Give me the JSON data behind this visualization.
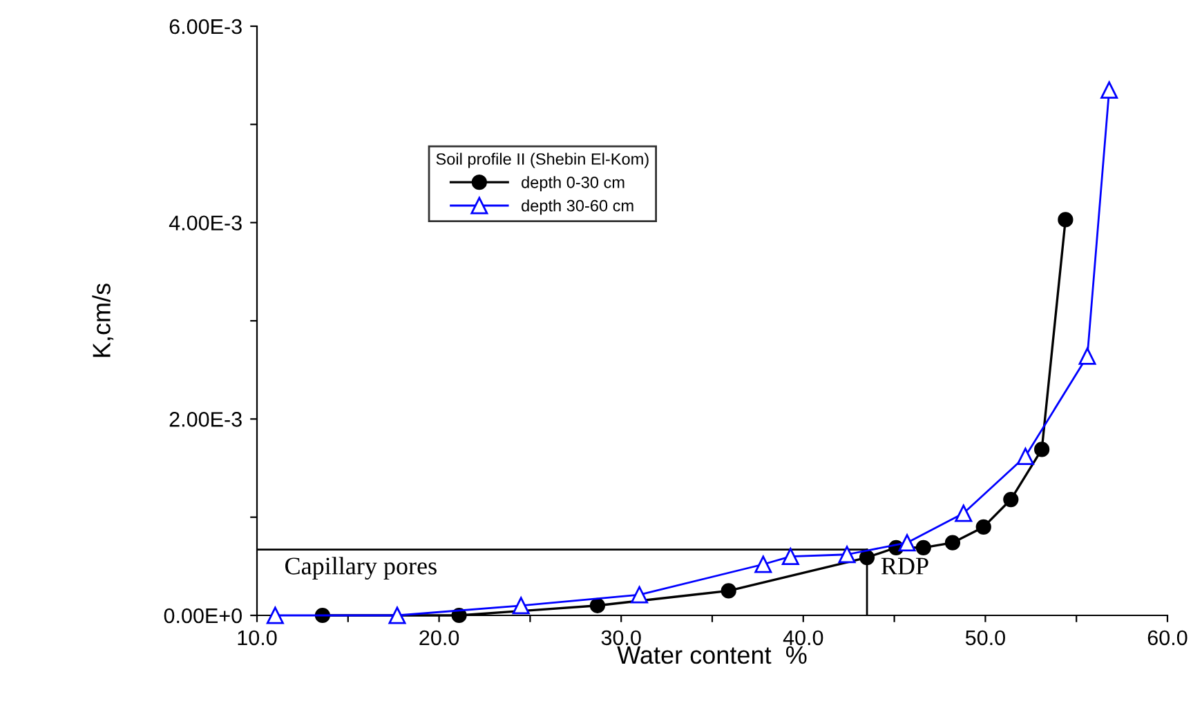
{
  "chart_data": {
    "type": "line",
    "xlabel": "Water content  %",
    "ylabel": "K,cm/s",
    "legend_title": "Soil profile II (Shebin El-Kom)",
    "xlim": [
      10,
      60
    ],
    "xticks": [
      {
        "value": 10,
        "label": "10.0"
      },
      {
        "value": 15,
        "label": null
      },
      {
        "value": 20,
        "label": "20.0"
      },
      {
        "value": 25,
        "label": null
      },
      {
        "value": 30,
        "label": "30.0"
      },
      {
        "value": 35,
        "label": null
      },
      {
        "value": 40,
        "label": "40.0"
      },
      {
        "value": 45,
        "label": null
      },
      {
        "value": 50,
        "label": "50.0"
      },
      {
        "value": 55,
        "label": null
      },
      {
        "value": 60,
        "label": "60.0"
      }
    ],
    "ylim": [
      0,
      0.006
    ],
    "yticks": [
      {
        "value": 0,
        "label": "0.00E+0"
      },
      {
        "value": 0.001,
        "label": null
      },
      {
        "value": 0.002,
        "label": "2.00E-3"
      },
      {
        "value": 0.003,
        "label": null
      },
      {
        "value": 0.004,
        "label": "4.00E-3"
      },
      {
        "value": 0.005,
        "label": null
      },
      {
        "value": 0.006,
        "label": "6.00E-3"
      }
    ],
    "grid": false,
    "legend": "top left",
    "line_style": "solid",
    "series": [
      {
        "name": "depth 0-30 cm",
        "color": "#000000",
        "marker": "circle",
        "x": [
          13.6,
          21.1,
          28.7,
          35.9,
          43.5,
          45.1,
          46.6,
          48.2,
          49.9,
          51.4,
          53.1,
          54.4
        ],
        "values": [
          0,
          0,
          0.0001,
          0.00025,
          0.00059,
          0.00069,
          0.00069,
          0.00074,
          0.0009,
          0.00118,
          0.00169,
          0.00403
        ]
      },
      {
        "name": "depth 30-60 cm",
        "color": "#0000ff",
        "marker": "triangle",
        "x": [
          11.0,
          17.7,
          24.5,
          31.0,
          37.8,
          39.3,
          42.4,
          45.7,
          48.8,
          52.2,
          55.6,
          56.8
        ],
        "values": [
          0,
          0,
          0.0001,
          0.00021,
          0.00052,
          0.0006,
          0.00062,
          0.00074,
          0.00104,
          0.00162,
          0.00264,
          0.00535
        ]
      }
    ],
    "ref_lines": [
      {
        "axis": "y",
        "value": 0.00067,
        "color": "#000000"
      },
      {
        "axis": "x",
        "value": 43.5,
        "color": "#000000"
      }
    ],
    "annotations": [
      "Capillary pores",
      "RDP"
    ]
  }
}
